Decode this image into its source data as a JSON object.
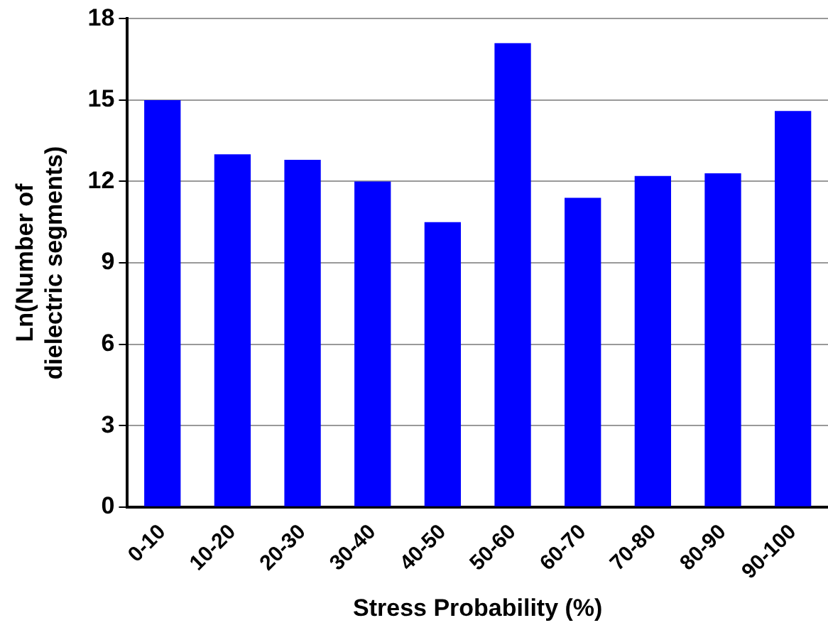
{
  "chart_data": {
    "type": "bar",
    "xlabel": "Stress Probability (%)",
    "ylabel": "Ln(Number of dielectric segments)",
    "categories": [
      "0-10",
      "10-20",
      "20-30",
      "30-40",
      "40-50",
      "50-60",
      "60-70",
      "70-80",
      "80-90",
      "90-100"
    ],
    "values": [
      15.0,
      13.0,
      12.8,
      12.0,
      10.5,
      17.1,
      11.4,
      12.2,
      12.3,
      14.6
    ],
    "color": "#0000ff",
    "ylim": [
      0,
      18
    ],
    "yticks": [
      0,
      3,
      6,
      9,
      12,
      15,
      18
    ],
    "grid": "y",
    "legend": false
  }
}
